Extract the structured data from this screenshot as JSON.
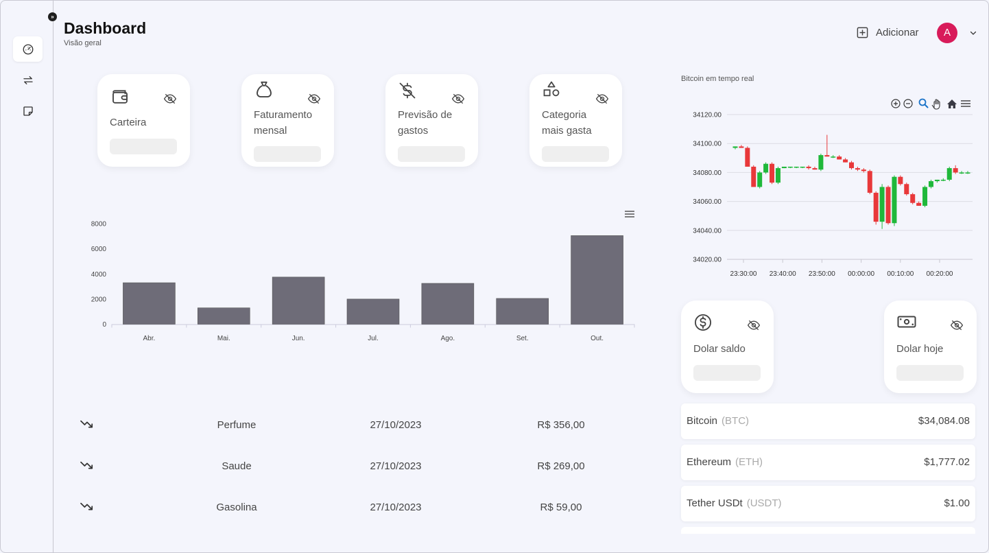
{
  "header": {
    "title": "Dashboard",
    "subtitle": "Visão geral",
    "add_label": "Adicionar",
    "avatar_initial": "A"
  },
  "sidebar": {
    "items": [
      {
        "icon": "speedometer-icon",
        "active": true
      },
      {
        "icon": "transfer-arrows-icon",
        "active": false
      },
      {
        "icon": "note-icon",
        "active": false
      }
    ]
  },
  "cards": {
    "carteira": {
      "label": "Carteira"
    },
    "faturamento": {
      "label1": "Faturamento",
      "label2": "mensal"
    },
    "previsao": {
      "label1": "Previsão de",
      "label2": "gastos"
    },
    "categoria": {
      "label1": "Categoria",
      "label2": "mais gasta"
    },
    "dolar_saldo": {
      "label": "Dolar saldo"
    },
    "dolar_hoje": {
      "label": "Dolar hoje"
    }
  },
  "chart_data": [
    {
      "type": "bar",
      "categories": [
        "Abr.",
        "Mai.",
        "Jun.",
        "Jul.",
        "Ago.",
        "Set.",
        "Out."
      ],
      "values": [
        3300,
        1300,
        3750,
        2000,
        3250,
        2050,
        7050
      ],
      "ylim": [
        0,
        8000
      ],
      "yticks": [
        0,
        2000,
        4000,
        6000,
        8000
      ],
      "title": "",
      "xlabel": "",
      "ylabel": "",
      "color": "#6e6c78",
      "grid": false
    },
    {
      "type": "candlestick",
      "title": "Bitcoin em tempo real",
      "ylim": [
        34020,
        34120
      ],
      "yticks": [
        "34020.00",
        "34040.00",
        "34060.00",
        "34080.00",
        "34100.00",
        "34120.00"
      ],
      "xticks": [
        "23:30:00",
        "23:40:00",
        "23:50:00",
        "00:00:00",
        "00:10:00",
        "00:20:00"
      ],
      "x_start": "23:30:00",
      "interval_seconds": 60,
      "up_color": "#1fb83a",
      "down_color": "#e8383a",
      "grid": true,
      "candles": [
        {
          "o": 34097,
          "h": 34098,
          "l": 34096,
          "c": 34098
        },
        {
          "o": 34098,
          "h": 34099,
          "l": 34097,
          "c": 34097
        },
        {
          "o": 34097,
          "h": 34098,
          "l": 34084,
          "c": 34084
        },
        {
          "o": 34084,
          "h": 34085,
          "l": 34070,
          "c": 34070
        },
        {
          "o": 34070,
          "h": 34081,
          "l": 34069,
          "c": 34080
        },
        {
          "o": 34080,
          "h": 34087,
          "l": 34079,
          "c": 34086
        },
        {
          "o": 34086,
          "h": 34087,
          "l": 34072,
          "c": 34073
        },
        {
          "o": 34073,
          "h": 34084,
          "l": 34072,
          "c": 34083
        },
        {
          "o": 34083,
          "h": 34084,
          "l": 34083,
          "c": 34084
        },
        {
          "o": 34084,
          "h": 34084,
          "l": 34083,
          "c": 34084
        },
        {
          "o": 34084,
          "h": 34084,
          "l": 34083,
          "c": 34084
        },
        {
          "o": 34084,
          "h": 34084,
          "l": 34083,
          "c": 34084
        },
        {
          "o": 34084,
          "h": 34085,
          "l": 34082,
          "c": 34083
        },
        {
          "o": 34083,
          "h": 34084,
          "l": 34082,
          "c": 34082
        },
        {
          "o": 34082,
          "h": 34093,
          "l": 34081,
          "c": 34092
        },
        {
          "o": 34092,
          "h": 34106,
          "l": 34091,
          "c": 34091
        },
        {
          "o": 34091,
          "h": 34092,
          "l": 34090,
          "c": 34091
        },
        {
          "o": 34091,
          "h": 34092,
          "l": 34089,
          "c": 34089
        },
        {
          "o": 34089,
          "h": 34090,
          "l": 34087,
          "c": 34087
        },
        {
          "o": 34087,
          "h": 34088,
          "l": 34082,
          "c": 34083
        },
        {
          "o": 34083,
          "h": 34084,
          "l": 34081,
          "c": 34082
        },
        {
          "o": 34082,
          "h": 34083,
          "l": 34080,
          "c": 34081
        },
        {
          "o": 34081,
          "h": 34082,
          "l": 34065,
          "c": 34066
        },
        {
          "o": 34066,
          "h": 34067,
          "l": 34044,
          "c": 34046
        },
        {
          "o": 34046,
          "h": 34072,
          "l": 34041,
          "c": 34070
        },
        {
          "o": 34070,
          "h": 34071,
          "l": 34044,
          "c": 34045
        },
        {
          "o": 34045,
          "h": 34078,
          "l": 34043,
          "c": 34077
        },
        {
          "o": 34077,
          "h": 34078,
          "l": 34071,
          "c": 34072
        },
        {
          "o": 34072,
          "h": 34073,
          "l": 34064,
          "c": 34065
        },
        {
          "o": 34065,
          "h": 34066,
          "l": 34058,
          "c": 34059
        },
        {
          "o": 34059,
          "h": 34060,
          "l": 34057,
          "c": 34057
        },
        {
          "o": 34057,
          "h": 34071,
          "l": 34056,
          "c": 34070
        },
        {
          "o": 34070,
          "h": 34075,
          "l": 34069,
          "c": 34074
        },
        {
          "o": 34074,
          "h": 34075,
          "l": 34073,
          "c": 34075
        },
        {
          "o": 34075,
          "h": 34076,
          "l": 34074,
          "c": 34075
        },
        {
          "o": 34075,
          "h": 34084,
          "l": 34074,
          "c": 34083
        },
        {
          "o": 34083,
          "h": 34085,
          "l": 34079,
          "c": 34080
        },
        {
          "o": 34080,
          "h": 34081,
          "l": 34079,
          "c": 34080
        },
        {
          "o": 34080,
          "h": 34081,
          "l": 34079,
          "c": 34080
        }
      ]
    }
  ],
  "transactions": [
    {
      "icon": "trending-down-icon",
      "name": "Perfume",
      "date": "27/10/2023",
      "amount": "R$ 356,00"
    },
    {
      "icon": "trending-down-icon",
      "name": "Saude",
      "date": "27/10/2023",
      "amount": "R$ 269,00"
    },
    {
      "icon": "trending-down-icon",
      "name": "Gasolina",
      "date": "27/10/2023",
      "amount": "R$ 59,00"
    }
  ],
  "crypto": [
    {
      "name": "Bitcoin",
      "symbol": "(BTC)",
      "price": "$34,084.08"
    },
    {
      "name": "Ethereum",
      "symbol": "(ETH)",
      "price": "$1,777.02"
    },
    {
      "name": "Tether USDt",
      "symbol": "(USDT)",
      "price": "$1.00"
    }
  ]
}
